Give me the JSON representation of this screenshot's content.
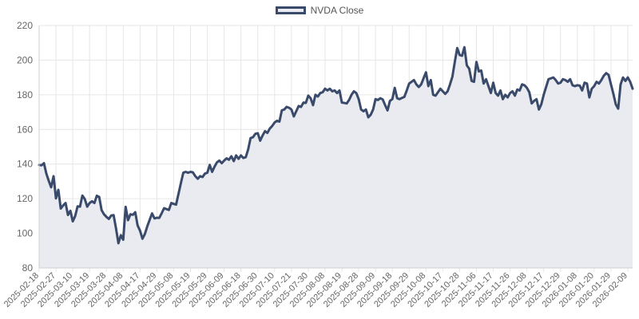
{
  "legend": {
    "label": "NVDA Close"
  },
  "colors": {
    "line": "#3a4a6b",
    "fill": "#e9ebf0",
    "grid": "#e6e6e6",
    "tick_text": "#666666"
  },
  "chart_data": {
    "type": "area",
    "grid": true,
    "legend_position": "top-center",
    "ylim": [
      80,
      220
    ],
    "yticks": [
      80,
      100,
      120,
      140,
      160,
      180,
      200,
      220
    ],
    "xtick_labels": [
      "2025-02-18",
      "2025-02-27",
      "2025-03-10",
      "2025-03-19",
      "2025-03-28",
      "2025-04-08",
      "2025-04-17",
      "2025-04-29",
      "2025-05-08",
      "2025-05-19",
      "2025-05-29",
      "2025-06-09",
      "2025-06-18",
      "2025-06-30",
      "2025-07-10",
      "2025-07-21",
      "2025-07-30",
      "2025-08-08",
      "2025-08-19",
      "2025-08-28",
      "2025-09-09",
      "2025-09-18",
      "2025-09-29",
      "2025-10-08",
      "2025-10-17",
      "2025-10-28",
      "2025-11-06",
      "2025-11-17",
      "2025-11-26",
      "2025-12-08",
      "2025-12-17",
      "2025-12-29",
      "2026-01-08",
      "2026-01-20",
      "2026-01-29",
      "2026-02-09"
    ],
    "series": [
      {
        "name": "NVDA Close",
        "values": [
          139.5,
          139.3,
          140.5,
          134.5,
          130.3,
          126.6,
          133.0,
          120.2,
          125.1,
          114.3,
          116.1,
          117.5,
          110.6,
          113.0,
          106.9,
          110.0,
          115.6,
          115.4,
          121.8,
          119.8,
          115.4,
          117.5,
          118.5,
          117.5,
          121.7,
          121.0,
          113.4,
          111.0,
          109.5,
          108.3,
          110.3,
          110.5,
          102.8,
          94.3,
          98.9,
          96.3,
          115.3,
          107.6,
          111.0,
          110.7,
          112.2,
          104.5,
          101.5,
          96.9,
          99.6,
          104.0,
          107.8,
          111.5,
          108.6,
          109.0,
          108.9,
          111.6,
          114.5,
          114.0,
          113.5,
          117.5,
          117.0,
          116.6,
          122.8,
          129.0,
          135.0,
          135.5,
          135.0,
          135.5,
          135.2,
          133.0,
          131.5,
          133.0,
          132.5,
          134.5,
          135.0,
          139.5,
          135.5,
          138.5,
          141.0,
          142.0,
          140.5,
          142.0,
          143.3,
          142.5,
          144.5,
          141.7,
          145.0,
          143.0,
          145.0,
          143.5,
          144.0,
          148.5,
          155.0,
          155.5,
          157.5,
          157.8,
          153.5,
          156.5,
          159.0,
          158.0,
          160.5,
          162.0,
          164.0,
          165.0,
          164.5,
          171.0,
          171.5,
          173.0,
          172.5,
          171.5,
          167.5,
          170.5,
          173.5,
          173.0,
          175.5,
          175.3,
          179.5,
          178.0,
          174.0,
          180.0,
          179.0,
          181.0,
          181.5,
          183.5,
          182.5,
          183.5,
          182.0,
          182.5,
          181.0,
          182.5,
          175.5,
          175.3,
          175.0,
          177.0,
          180.0,
          182.0,
          181.0,
          177.5,
          171.5,
          170.5,
          171.5,
          167.0,
          168.5,
          171.5,
          177.5,
          177.0,
          178.0,
          177.3,
          174.0,
          171.0,
          176.5,
          177.5,
          184.0,
          178.0,
          177.5,
          178.2,
          178.8,
          182.5,
          186.5,
          187.5,
          188.5,
          186.0,
          184.5,
          186.0,
          189.5,
          193.0,
          185.0,
          188.5,
          180.0,
          179.5,
          181.5,
          183.5,
          182.0,
          180.5,
          182.0,
          186.0,
          190.5,
          199.0,
          207.0,
          203.0,
          202.5,
          207.5,
          197.0,
          195.0,
          188.0,
          187.5,
          199.0,
          193.5,
          194.0,
          186.5,
          189.0,
          185.0,
          181.0,
          187.0,
          181.0,
          179.5,
          182.5,
          177.5,
          180.0,
          178.5,
          181.0,
          182.0,
          179.5,
          183.0,
          182.5,
          186.0,
          185.5,
          184.0,
          181.5,
          175.0,
          176.5,
          177.5,
          171.5,
          174.5,
          180.0,
          184.5,
          189.0,
          189.5,
          190.0,
          188.5,
          186.5,
          187.0,
          189.0,
          188.5,
          187.5,
          189.0,
          185.5,
          185.0,
          185.5,
          185.3,
          182.5,
          187.0,
          186.5,
          178.5,
          183.5,
          185.0,
          187.5,
          186.5,
          188.5,
          191.0,
          192.5,
          191.5,
          186.0,
          180.5,
          174.5,
          172.0,
          186.0,
          190.0,
          188.0,
          190.0,
          187.5,
          183.5
        ]
      }
    ]
  }
}
